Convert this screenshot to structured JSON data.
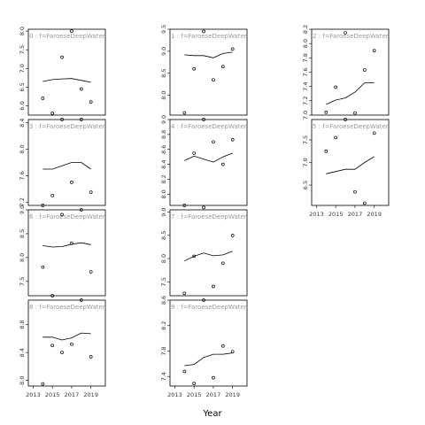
{
  "figure": {
    "xlabel": "Year",
    "colors": {
      "frame": "#000000",
      "line": "#000000",
      "point": "#000000",
      "strip_text": "#9a9a9a"
    }
  },
  "chart_data": [
    {
      "type": "scatter",
      "panel": "panel-0",
      "title": "f=FaroeseDeepWaterS",
      "xlim": [
        2012.5,
        2020.5
      ],
      "ylim": [
        5.75,
        8.05
      ],
      "yticks": [
        6.0,
        6.5,
        7.0,
        7.5,
        8.0
      ],
      "xticks": [],
      "points": [
        [
          2014,
          6.2
        ],
        [
          2015,
          5.8
        ],
        [
          2016,
          7.3
        ],
        [
          2017,
          8.0
        ],
        [
          2018,
          6.45
        ],
        [
          2019,
          6.1
        ]
      ],
      "smooth": [
        [
          2014,
          6.65
        ],
        [
          2015,
          6.7
        ],
        [
          2016,
          6.72
        ],
        [
          2017,
          6.73
        ],
        [
          2018,
          6.68
        ],
        [
          2019,
          6.63
        ]
      ]
    },
    {
      "type": "scatter",
      "panel": "panel-1",
      "title": "f=FaroeseDeepWaterS",
      "xlim": [
        2012.5,
        2020.5
      ],
      "ylim": [
        7.55,
        9.5
      ],
      "yticks": [
        8.0,
        8.5,
        9.0,
        9.5
      ],
      "xticks": [],
      "points": [
        [
          2014,
          7.6
        ],
        [
          2015,
          8.6
        ],
        [
          2016,
          9.45
        ],
        [
          2017,
          8.35
        ],
        [
          2018,
          8.65
        ],
        [
          2019,
          9.05
        ]
      ],
      "smooth": [
        [
          2014,
          8.92
        ],
        [
          2015,
          8.9
        ],
        [
          2016,
          8.9
        ],
        [
          2017,
          8.85
        ],
        [
          2018,
          8.95
        ],
        [
          2019,
          8.98
        ]
      ]
    },
    {
      "type": "scatter",
      "panel": "panel-2",
      "title": "f=FaroeseDeepWaterS",
      "xlim": [
        2012.5,
        2020.5
      ],
      "ylim": [
        7.0,
        8.2
      ],
      "yticks": [
        7.0,
        7.2,
        7.4,
        7.6,
        7.8,
        8.0,
        8.2
      ],
      "xticks": [],
      "points": [
        [
          2014,
          7.04
        ],
        [
          2015,
          7.39
        ],
        [
          2016,
          8.15
        ],
        [
          2017,
          7.03
        ],
        [
          2018,
          7.63
        ],
        [
          2019,
          7.9
        ]
      ],
      "smooth": [
        [
          2014,
          7.15
        ],
        [
          2015,
          7.21
        ],
        [
          2016,
          7.24
        ],
        [
          2017,
          7.32
        ],
        [
          2018,
          7.45
        ],
        [
          2019,
          7.45
        ]
      ]
    },
    {
      "type": "scatter",
      "panel": "panel-3",
      "title": "f=FaroeseDeepWaterS",
      "xlim": [
        2012.5,
        2020.5
      ],
      "ylim": [
        7.15,
        8.45
      ],
      "yticks": [
        7.2,
        7.6,
        8.0,
        8.4
      ],
      "xticks": [],
      "points": [
        [
          2014,
          7.15
        ],
        [
          2015,
          7.3
        ],
        [
          2016,
          8.45
        ],
        [
          2017,
          7.5
        ],
        [
          2018,
          8.45
        ],
        [
          2019,
          7.35
        ]
      ],
      "smooth": [
        [
          2014,
          7.7
        ],
        [
          2015,
          7.7
        ],
        [
          2016,
          7.75
        ],
        [
          2017,
          7.8
        ],
        [
          2018,
          7.8
        ],
        [
          2019,
          7.7
        ]
      ]
    },
    {
      "type": "scatter",
      "panel": "panel-4",
      "title": "f=FaroeseDeepWaterS",
      "xlim": [
        2012.5,
        2020.5
      ],
      "ylim": [
        7.85,
        9.0
      ],
      "yticks": [
        8.0,
        8.2,
        8.4,
        8.6,
        8.8,
        9.0
      ],
      "xticks": [],
      "points": [
        [
          2014,
          7.85
        ],
        [
          2015,
          8.55
        ],
        [
          2016,
          9.0
        ],
        [
          2017,
          8.7
        ],
        [
          2018,
          8.4
        ],
        [
          2019,
          8.73
        ]
      ],
      "smooth": [
        [
          2014,
          8.45
        ],
        [
          2015,
          8.51
        ],
        [
          2016,
          8.47
        ],
        [
          2017,
          8.43
        ],
        [
          2018,
          8.5
        ],
        [
          2019,
          8.55
        ]
      ]
    },
    {
      "type": "scatter",
      "panel": "panel-5",
      "title": "f=FaroeseDeepWaterS",
      "xlim": [
        2012.5,
        2020.5
      ],
      "ylim": [
        6.05,
        7.95
      ],
      "yticks": [
        6.5,
        7.0,
        7.5
      ],
      "xticks": [
        "2013",
        "2015",
        "2017",
        "2019"
      ],
      "points": [
        [
          2014,
          7.25
        ],
        [
          2015,
          7.55
        ],
        [
          2016,
          7.95
        ],
        [
          2017,
          6.35
        ],
        [
          2018,
          6.1
        ],
        [
          2019,
          7.65
        ]
      ],
      "smooth": [
        [
          2014,
          6.75
        ],
        [
          2015,
          6.8
        ],
        [
          2016,
          6.85
        ],
        [
          2017,
          6.85
        ],
        [
          2018,
          7.0
        ],
        [
          2019,
          7.13
        ]
      ]
    },
    {
      "type": "scatter",
      "panel": "panel-6",
      "title": "f=FaroeseDeepWaterS",
      "xlim": [
        2012.5,
        2020.5
      ],
      "ylim": [
        7.2,
        9.0
      ],
      "yticks": [
        7.5,
        8.0,
        8.5,
        9.0
      ],
      "xticks": [],
      "points": [
        [
          2014,
          7.8
        ],
        [
          2015,
          7.2
        ],
        [
          2016,
          8.9
        ],
        [
          2017,
          8.3
        ],
        [
          2018,
          9.0
        ],
        [
          2019,
          7.7
        ]
      ],
      "smooth": [
        [
          2014,
          8.25
        ],
        [
          2015,
          8.22
        ],
        [
          2016,
          8.23
        ],
        [
          2017,
          8.28
        ],
        [
          2018,
          8.31
        ],
        [
          2019,
          8.27
        ]
      ]
    },
    {
      "type": "scatter",
      "panel": "panel-7",
      "title": "f=FaroeseDeepWaterS",
      "xlim": [
        2012.5,
        2020.5
      ],
      "ylim": [
        7.2,
        9.05
      ],
      "yticks": [
        7.5,
        8.0,
        8.5,
        9.0
      ],
      "xticks": [],
      "points": [
        [
          2014,
          7.25
        ],
        [
          2015,
          8.05
        ],
        [
          2016,
          9.1
        ],
        [
          2017,
          7.4
        ],
        [
          2018,
          7.9
        ],
        [
          2019,
          8.5
        ]
      ],
      "smooth": [
        [
          2014,
          7.95
        ],
        [
          2015,
          8.05
        ],
        [
          2016,
          8.12
        ],
        [
          2017,
          8.06
        ],
        [
          2018,
          8.08
        ],
        [
          2019,
          8.16
        ]
      ]
    },
    {
      "type": "scatter",
      "panel": "panel-8",
      "title": "f=FaroeseDeepWaterS",
      "xlim": [
        2012.5,
        2020.5
      ],
      "ylim": [
        7.92,
        9.15
      ],
      "yticks": [
        8.0,
        8.4,
        8.8
      ],
      "xticks": [
        "2013",
        "2015",
        "2017",
        "2019"
      ],
      "points": [
        [
          2014,
          7.95
        ],
        [
          2015,
          8.5
        ],
        [
          2016,
          8.4
        ],
        [
          2017,
          8.52
        ],
        [
          2018,
          9.15
        ],
        [
          2019,
          8.34
        ]
      ],
      "smooth": [
        [
          2014,
          8.62
        ],
        [
          2015,
          8.62
        ],
        [
          2016,
          8.58
        ],
        [
          2017,
          8.61
        ],
        [
          2018,
          8.68
        ],
        [
          2019,
          8.67
        ]
      ]
    },
    {
      "type": "scatter",
      "panel": "panel-9",
      "title": "f=FaroeseDeepWaterS",
      "xlim": [
        2012.5,
        2020.5
      ],
      "ylim": [
        7.25,
        8.6
      ],
      "yticks": [
        7.4,
        7.8,
        8.2,
        8.6
      ],
      "xticks": [
        "2013",
        "2015",
        "2017",
        "2019"
      ],
      "points": [
        [
          2014,
          7.48
        ],
        [
          2015,
          7.29
        ],
        [
          2016,
          8.6
        ],
        [
          2017,
          7.38
        ],
        [
          2018,
          7.88
        ],
        [
          2019,
          7.79
        ]
      ],
      "smooth": [
        [
          2014,
          7.57
        ],
        [
          2015,
          7.59
        ],
        [
          2016,
          7.7
        ],
        [
          2017,
          7.75
        ],
        [
          2018,
          7.75
        ],
        [
          2019,
          7.77
        ]
      ]
    }
  ]
}
